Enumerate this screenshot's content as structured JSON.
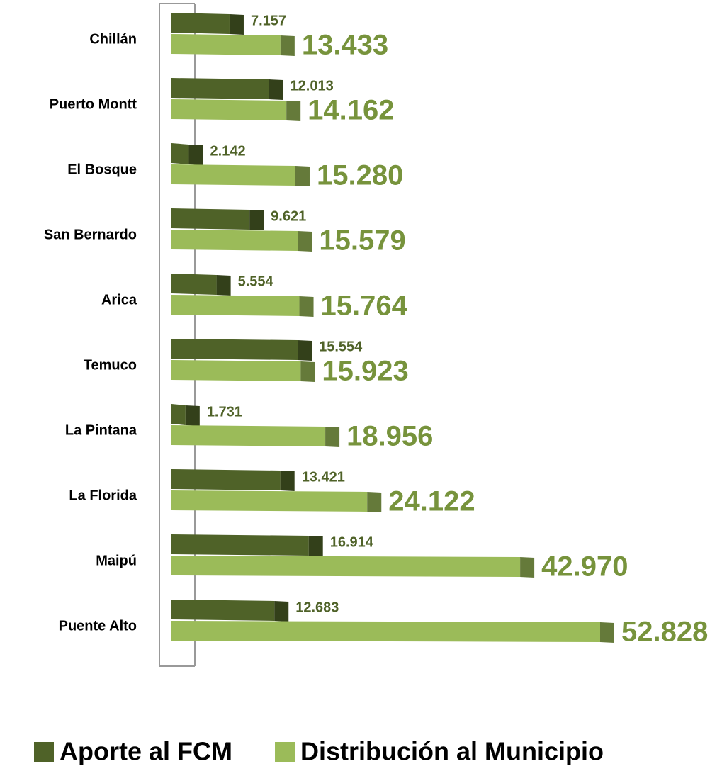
{
  "chart_data": {
    "type": "bar",
    "orientation": "horizontal",
    "categories": [
      "Chillán",
      "Puerto Montt",
      "El Bosque",
      "San Bernardo",
      "Arica",
      "Temuco",
      "La Pintana",
      "La Florida",
      "Maipú",
      "Puente Alto"
    ],
    "series": [
      {
        "name": "Aporte al FCM",
        "color": "#4f6228",
        "values": [
          7157,
          12013,
          2142,
          9621,
          5554,
          15554,
          1731,
          13421,
          16914,
          12683
        ],
        "value_labels": [
          "7.157",
          "12.013",
          "2.142",
          "9.621",
          "5.554",
          "15.554",
          "1.731",
          "13.421",
          "16.914",
          "12.683"
        ]
      },
      {
        "name": "Distribución al Municipio",
        "color": "#9bbb59",
        "values": [
          13433,
          14162,
          15280,
          15579,
          15764,
          15923,
          18956,
          24122,
          42970,
          52828
        ],
        "value_labels": [
          "13.433",
          "14.162",
          "15.280",
          "15.579",
          "15.764",
          "15.923",
          "18.956",
          "24.122",
          "42.970",
          "52.828"
        ]
      }
    ],
    "legend": "bottom"
  }
}
